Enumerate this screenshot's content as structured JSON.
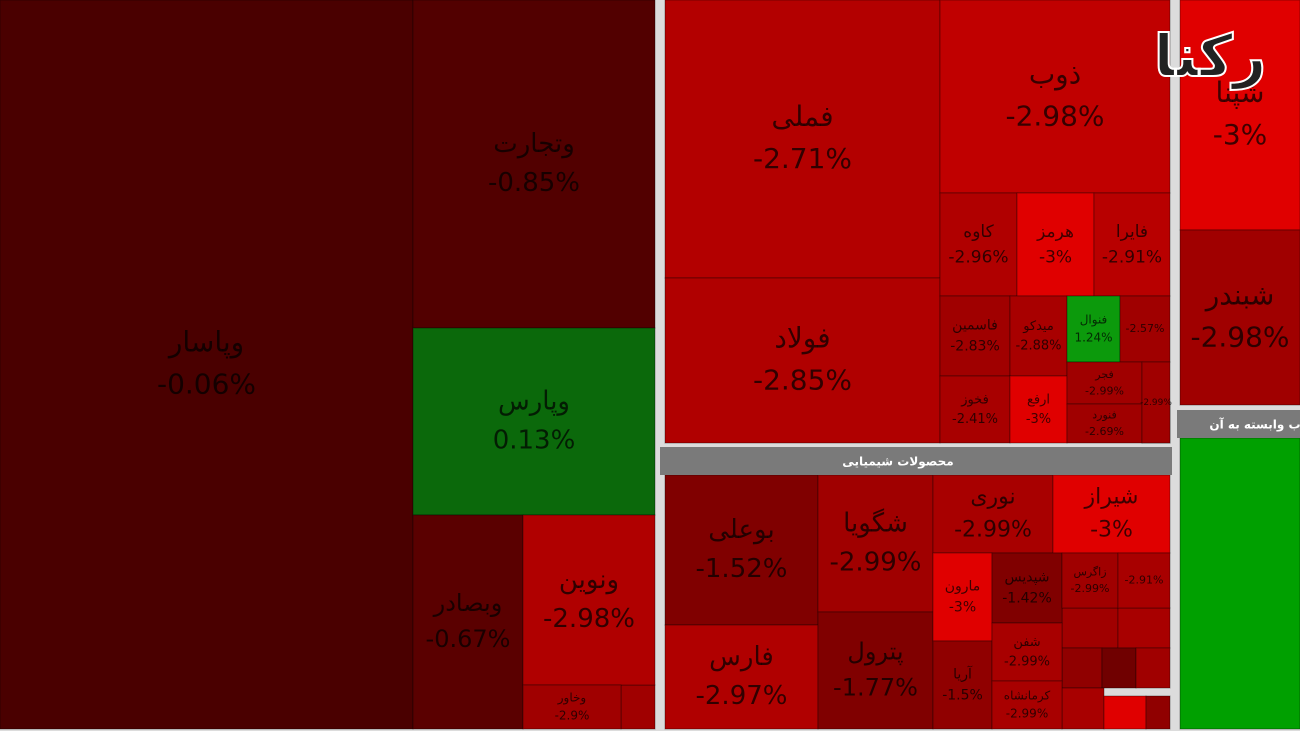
{
  "chart_data": {
    "type": "treemap",
    "logo": "رکنا",
    "group_titles": [
      "محصولات شیمیایی",
      "ب وابسته به آن"
    ],
    "categories": [
      "وپاسار",
      "وتجارت",
      "وپارس",
      "وبصادر",
      "ونوین",
      "وخاور",
      "فملی",
      "فولاد",
      "ذوب",
      "کاوه",
      "هرمز",
      "فایرا",
      "فاسمین",
      "میدکو",
      "فنوال",
      null,
      "فخوز",
      "ارفع",
      "فجر",
      "فنورد",
      null,
      "بوعلی",
      "فارس",
      "شگویا",
      "پترول",
      "نوری",
      "شیراز",
      "مارون",
      "شپدیس",
      "زاگرس",
      null,
      "آریا",
      "شفن",
      "کرمانشاه",
      "شپنا",
      "شبندر"
    ],
    "values": [
      -0.06,
      -0.85,
      0.13,
      -0.67,
      -2.98,
      -2.9,
      -2.71,
      -2.85,
      -2.98,
      -2.96,
      -3,
      -2.91,
      -2.83,
      -2.88,
      1.24,
      -2.57,
      -2.41,
      -3,
      -2.99,
      -2.69,
      -2.99,
      -1.52,
      -2.97,
      -2.99,
      -1.77,
      -2.99,
      -3,
      -3,
      -1.42,
      -2.99,
      -2.91,
      -1.5,
      -2.99,
      -2.99,
      -3,
      -2.98
    ],
    "value_labels": [
      "-0.06%",
      "-0.85%",
      "0.13%",
      "-0.67%",
      "-2.98%",
      "-2.9%",
      "-2.71%",
      "-2.85%",
      "-2.98%",
      "-2.96%",
      "-3%",
      "-2.91%",
      "-2.83%",
      "-2.88%",
      "1.24%",
      "-2.57%",
      "-2.41%",
      "-3%",
      "-2.99%",
      "-2.69%",
      "-2.99%",
      "-1.52%",
      "-2.97%",
      "-2.99%",
      "-1.77%",
      "-2.99%",
      "-3%",
      "-3%",
      "-1.42%",
      "-2.99%",
      "-2.91%",
      "-1.5%",
      "-2.99%",
      "-2.99%",
      "-3%",
      "-2.98%"
    ]
  }
}
